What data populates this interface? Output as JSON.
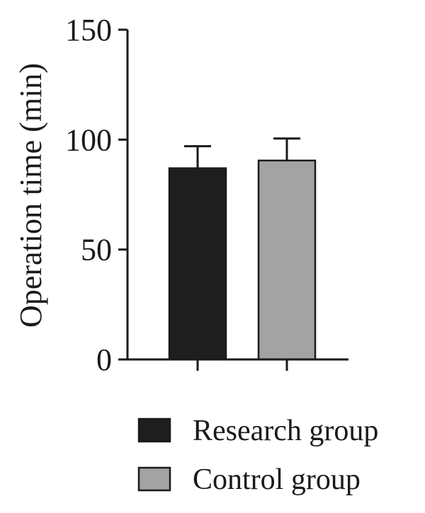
{
  "chart_data": {
    "type": "bar",
    "categories": [
      "Research group",
      "Control group"
    ],
    "values": [
      87,
      90.5
    ],
    "errors": [
      10,
      10
    ],
    "colors": [
      "#1e1e1e",
      "#a3a3a3"
    ],
    "ylabel": "Operation time (min)",
    "xlabel": "",
    "ylim": [
      0,
      150
    ],
    "yticks": [
      0,
      50,
      100,
      150
    ],
    "grid": false,
    "legend_position": "bottom"
  }
}
